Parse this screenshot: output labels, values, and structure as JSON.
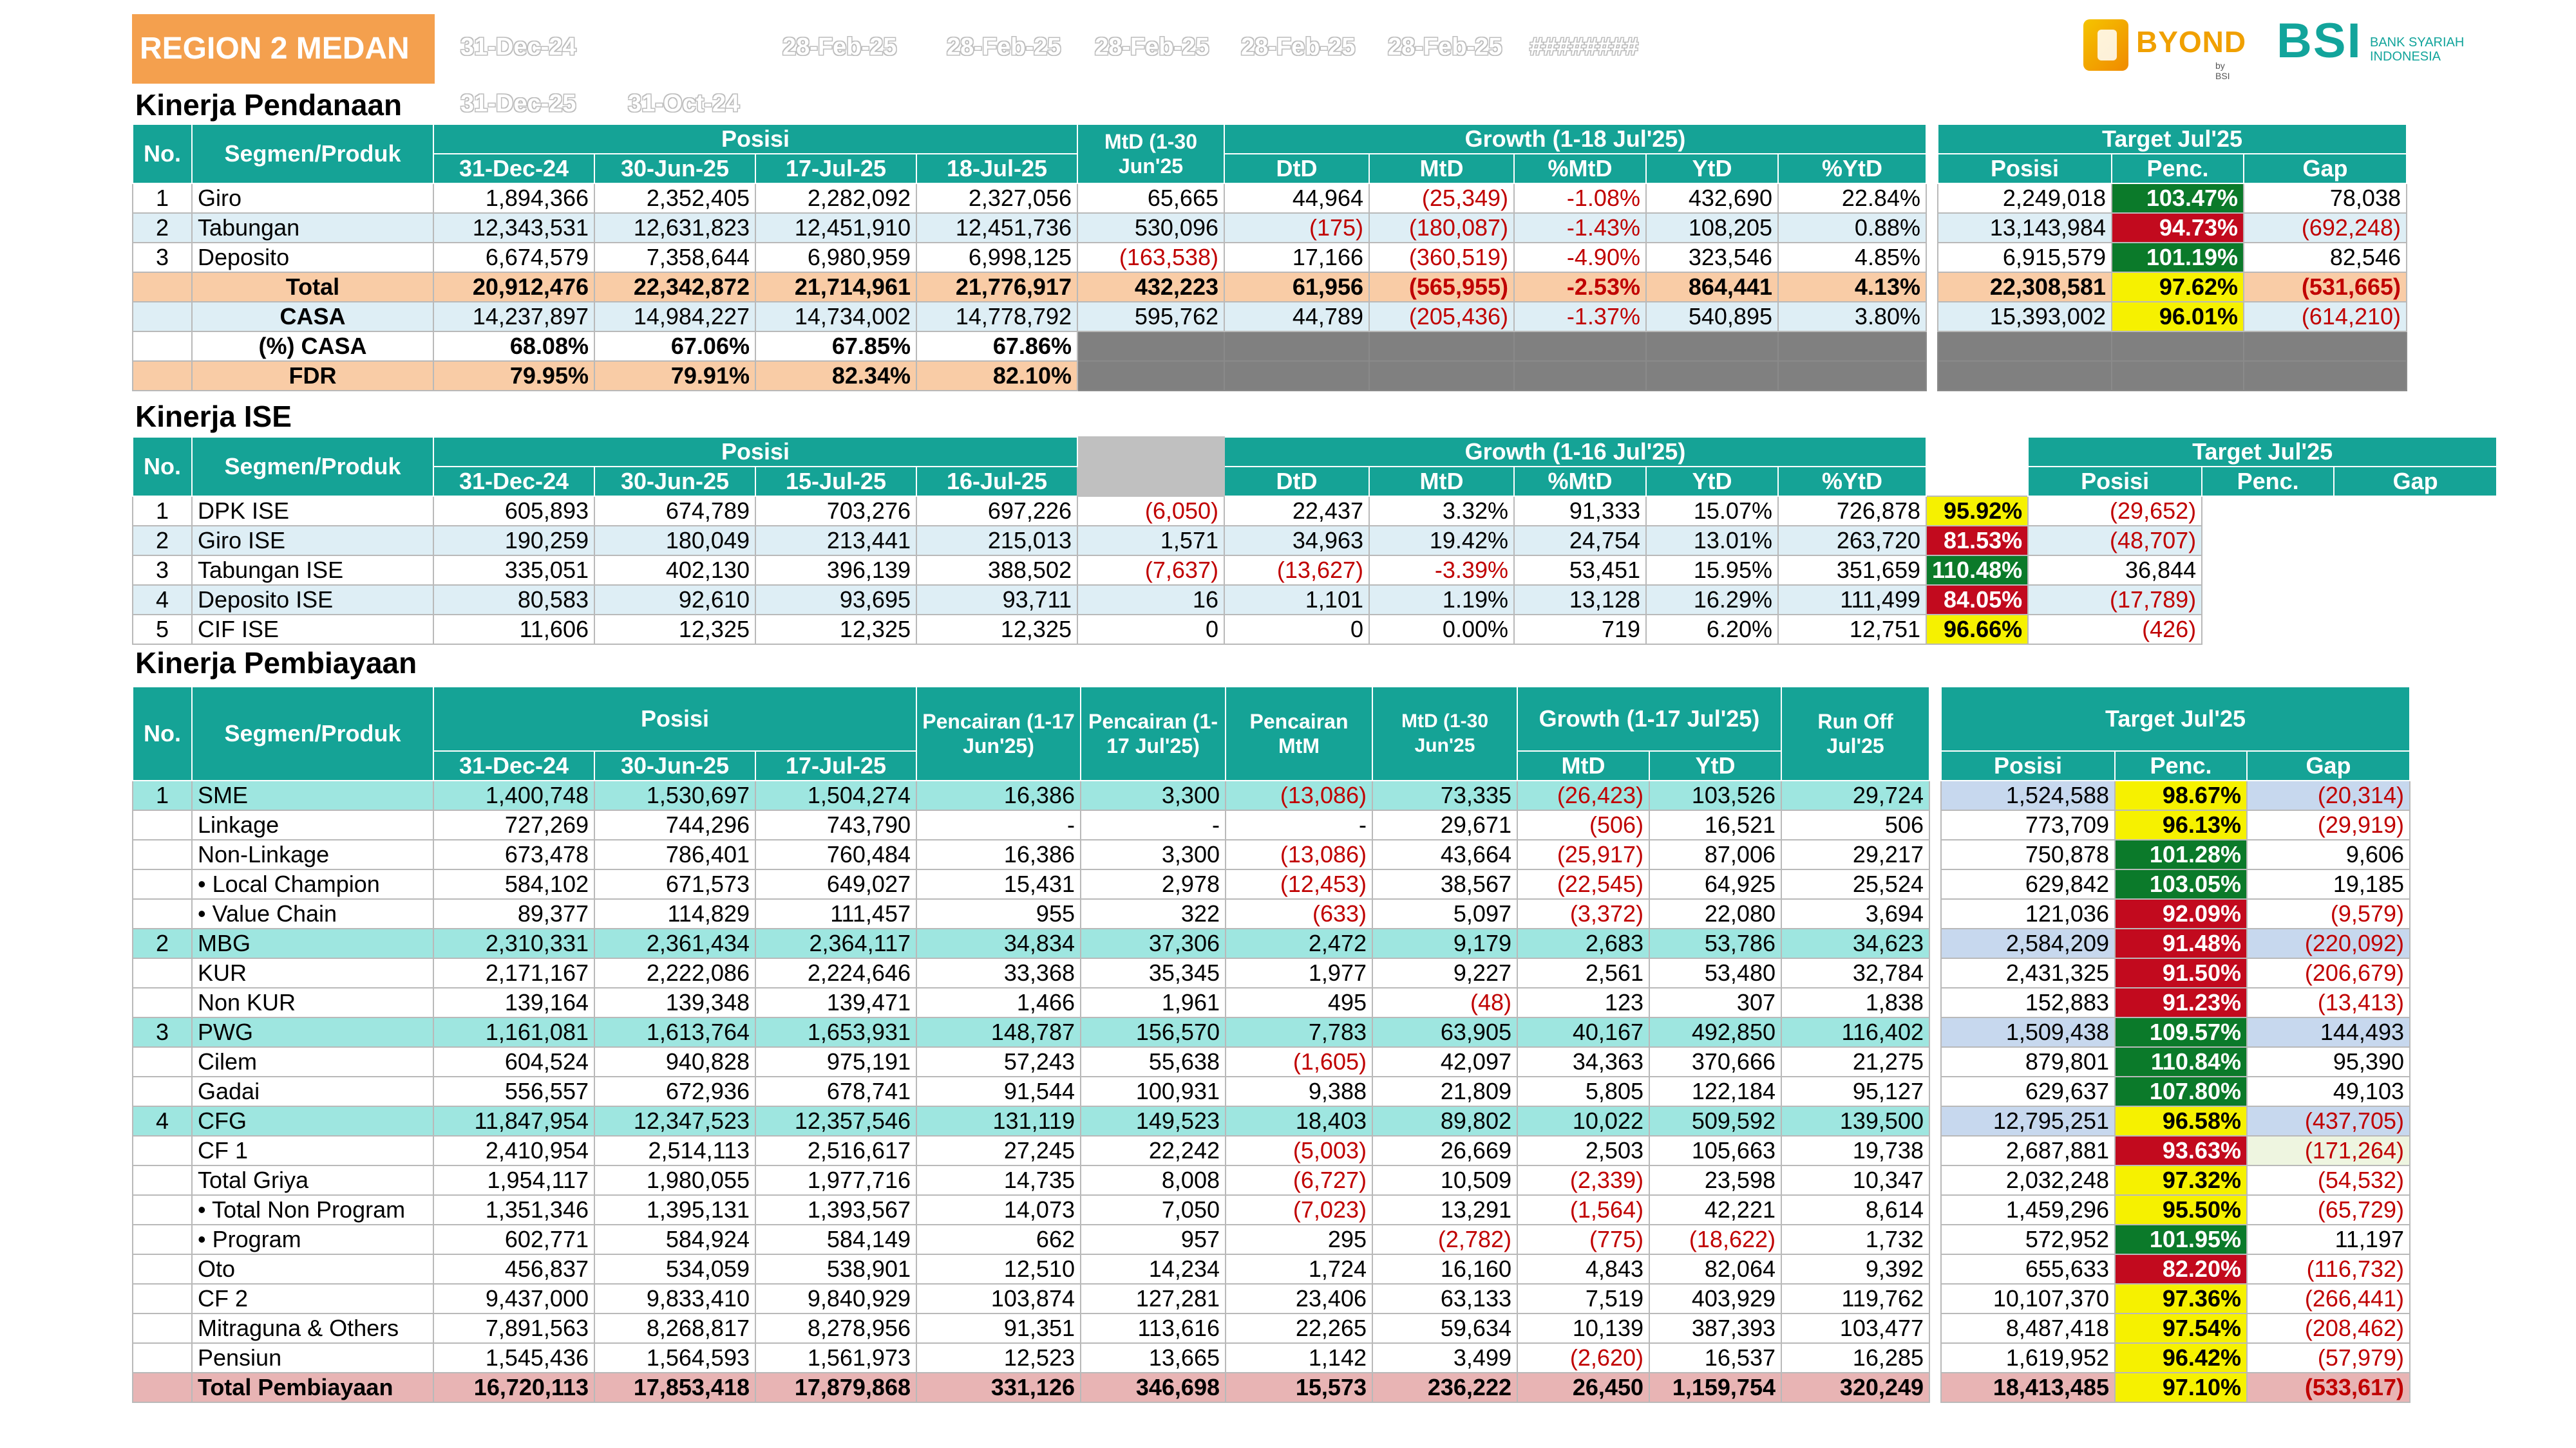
{
  "header": {
    "region": "REGION 2 MEDAN",
    "ghost_row1": [
      "31-Dec-24",
      "28-Feb-25",
      "28-Feb-25",
      "28-Feb-25",
      "28-Feb-25",
      "28-Feb-25",
      "########"
    ],
    "ghost_row2": [
      "31-Dec-25",
      "31-Oct-24"
    ],
    "logo_byond": "BYOND",
    "logo_byond_sub": "by BSI",
    "logo_bsi": "BSI",
    "logo_bsi_sub1": "BANK SYARIAH",
    "logo_bsi_sub2": "INDONESIA"
  },
  "colors": {
    "header_teal": "#15a396",
    "region_orange": "#f4a04e",
    "penc_green": "#0b7a2a",
    "penc_red": "#c20a1e",
    "penc_yellow": "#f6f100",
    "neg_text": "#c00000"
  },
  "pendanaan": {
    "title": "Kinerja Pendanaan",
    "h": {
      "no": "No.",
      "segmen": "Segmen/Produk",
      "posisi": "Posisi",
      "mtd": "MtD (1-30 Jun'25",
      "growth": "Growth (1-18 Jul'25)",
      "target": "Target Jul'25",
      "d1": "31-Dec-24",
      "d2": "30-Jun-25",
      "d3": "17-Jul-25",
      "d4": "18-Jul-25",
      "g1": "DtD",
      "g2": "MtD",
      "g3": "%MtD",
      "g4": "YtD",
      "g5": "%YtD",
      "t1": "Posisi",
      "t2": "Penc.",
      "t3": "Gap"
    },
    "rows": [
      {
        "no": "1",
        "name": "Giro",
        "v": [
          "1,894,366",
          "2,352,405",
          "2,282,092",
          "2,327,056",
          "65,665",
          "44,964",
          "(25,349)",
          "-1.08%",
          "432,690",
          "22.84%",
          "2,249,018",
          "103.47%",
          "78,038"
        ]
      },
      {
        "no": "2",
        "name": "Tabungan",
        "v": [
          "12,343,531",
          "12,631,823",
          "12,451,910",
          "12,451,736",
          "530,096",
          "(175)",
          "(180,087)",
          "-1.43%",
          "108,205",
          "0.88%",
          "13,143,984",
          "94.73%",
          "(692,248)"
        ]
      },
      {
        "no": "3",
        "name": "Deposito",
        "v": [
          "6,674,579",
          "7,358,644",
          "6,980,959",
          "6,998,125",
          "(163,538)",
          "17,166",
          "(360,519)",
          "-4.90%",
          "323,546",
          "4.85%",
          "6,915,579",
          "101.19%",
          "82,546"
        ]
      },
      {
        "no": "",
        "name": "Total",
        "v": [
          "20,912,476",
          "22,342,872",
          "21,714,961",
          "21,776,917",
          "432,223",
          "61,956",
          "(565,955)",
          "-2.53%",
          "864,441",
          "4.13%",
          "22,308,581",
          "97.62%",
          "(531,665)"
        ]
      },
      {
        "no": "",
        "name": "CASA",
        "v": [
          "14,237,897",
          "14,984,227",
          "14,734,002",
          "14,778,792",
          "595,762",
          "44,789",
          "(205,436)",
          "-1.37%",
          "540,895",
          "3.80%",
          "15,393,002",
          "96.01%",
          "(614,210)"
        ]
      },
      {
        "no": "",
        "name": "(%) CASA",
        "v": [
          "68.08%",
          "67.06%",
          "67.85%",
          "67.86%"
        ]
      },
      {
        "no": "",
        "name": "FDR",
        "v": [
          "79.95%",
          "79.91%",
          "82.34%",
          "82.10%"
        ]
      }
    ]
  },
  "ise": {
    "title": "Kinerja ISE",
    "h": {
      "no": "No.",
      "segmen": "Segmen/Produk",
      "posisi": "Posisi",
      "growth": "Growth (1-16 Jul'25)",
      "target": "Target Jul'25",
      "d1": "31-Dec-24",
      "d2": "30-Jun-25",
      "d3": "15-Jul-25",
      "d4": "16-Jul-25",
      "g1": "DtD",
      "g2": "MtD",
      "g3": "%MtD",
      "g4": "YtD",
      "g5": "%YtD",
      "t1": "Posisi",
      "t2": "Penc.",
      "t3": "Gap"
    },
    "rows": [
      {
        "no": "1",
        "name": "DPK ISE",
        "v": [
          "605,893",
          "674,789",
          "703,276",
          "697,226",
          "(6,050)",
          "22,437",
          "3.32%",
          "91,333",
          "15.07%",
          "726,878",
          "95.92%",
          "(29,652)"
        ]
      },
      {
        "no": "2",
        "name": "Giro ISE",
        "v": [
          "190,259",
          "180,049",
          "213,441",
          "215,013",
          "1,571",
          "34,963",
          "19.42%",
          "24,754",
          "13.01%",
          "263,720",
          "81.53%",
          "(48,707)"
        ]
      },
      {
        "no": "3",
        "name": "Tabungan ISE",
        "v": [
          "335,051",
          "402,130",
          "396,139",
          "388,502",
          "(7,637)",
          "(13,627)",
          "-3.39%",
          "53,451",
          "15.95%",
          "351,659",
          "110.48%",
          "36,844"
        ]
      },
      {
        "no": "4",
        "name": "Deposito ISE",
        "v": [
          "80,583",
          "92,610",
          "93,695",
          "93,711",
          "16",
          "1,101",
          "1.19%",
          "13,128",
          "16.29%",
          "111,499",
          "84.05%",
          "(17,789)"
        ]
      },
      {
        "no": "5",
        "name": "CIF ISE",
        "v": [
          "11,606",
          "12,325",
          "12,325",
          "12,325",
          "0",
          "0",
          "0.00%",
          "719",
          "6.20%",
          "12,751",
          "96.66%",
          "(426)"
        ]
      }
    ]
  },
  "pembiayaan": {
    "title": "Kinerja Pembiayaan",
    "h": {
      "no": "No.",
      "segmen": "Segmen/Produk",
      "posisi": "Posisi",
      "pc1": "Pencairan (1-17 Jun'25)",
      "pc2": "Pencairan (1-17 Jul'25)",
      "pc3": "Pencairan MtM",
      "mtd": "MtD (1-30 Jun'25",
      "growth": "Growth (1-17 Jul'25)",
      "runoff": "Run Off Jul'25",
      "target": "Target Jul'25",
      "d1": "31-Dec-24",
      "d2": "30-Jun-25",
      "d3": "17-Jul-25",
      "g1": "MtD",
      "g2": "YtD",
      "t1": "Posisi",
      "t2": "Penc.",
      "t3": "Gap"
    },
    "rows": [
      {
        "no": "1",
        "name": "SME",
        "v": [
          "1,400,748",
          "1,530,697",
          "1,504,274",
          "16,386",
          "3,300",
          "(13,086)",
          "73,335",
          "(26,423)",
          "103,526",
          "29,724",
          "1,524,588",
          "98.67%",
          "(20,314)"
        ]
      },
      {
        "no": "",
        "name": "Linkage",
        "v": [
          "727,269",
          "744,296",
          "743,790",
          "-",
          "-",
          "-",
          "29,671",
          "(506)",
          "16,521",
          "506",
          "773,709",
          "96.13%",
          "(29,919)"
        ]
      },
      {
        "no": "",
        "name": "Non-Linkage",
        "v": [
          "673,478",
          "786,401",
          "760,484",
          "16,386",
          "3,300",
          "(13,086)",
          "43,664",
          "(25,917)",
          "87,006",
          "29,217",
          "750,878",
          "101.28%",
          "9,606"
        ]
      },
      {
        "no": "",
        "name": "• Local Champion",
        "v": [
          "584,102",
          "671,573",
          "649,027",
          "15,431",
          "2,978",
          "(12,453)",
          "38,567",
          "(22,545)",
          "64,925",
          "25,524",
          "629,842",
          "103.05%",
          "19,185"
        ]
      },
      {
        "no": "",
        "name": "• Value Chain",
        "v": [
          "89,377",
          "114,829",
          "111,457",
          "955",
          "322",
          "(633)",
          "5,097",
          "(3,372)",
          "22,080",
          "3,694",
          "121,036",
          "92.09%",
          "(9,579)"
        ]
      },
      {
        "no": "2",
        "name": "MBG",
        "v": [
          "2,310,331",
          "2,361,434",
          "2,364,117",
          "34,834",
          "37,306",
          "2,472",
          "9,179",
          "2,683",
          "53,786",
          "34,623",
          "2,584,209",
          "91.48%",
          "(220,092)"
        ]
      },
      {
        "no": "",
        "name": "KUR",
        "v": [
          "2,171,167",
          "2,222,086",
          "2,224,646",
          "33,368",
          "35,345",
          "1,977",
          "9,227",
          "2,561",
          "53,480",
          "32,784",
          "2,431,325",
          "91.50%",
          "(206,679)"
        ]
      },
      {
        "no": "",
        "name": "Non KUR",
        "v": [
          "139,164",
          "139,348",
          "139,471",
          "1,466",
          "1,961",
          "495",
          "(48)",
          "123",
          "307",
          "1,838",
          "152,883",
          "91.23%",
          "(13,413)"
        ]
      },
      {
        "no": "3",
        "name": "PWG",
        "v": [
          "1,161,081",
          "1,613,764",
          "1,653,931",
          "148,787",
          "156,570",
          "7,783",
          "63,905",
          "40,167",
          "492,850",
          "116,402",
          "1,509,438",
          "109.57%",
          "144,493"
        ]
      },
      {
        "no": "",
        "name": "Cilem",
        "v": [
          "604,524",
          "940,828",
          "975,191",
          "57,243",
          "55,638",
          "(1,605)",
          "42,097",
          "34,363",
          "370,666",
          "21,275",
          "879,801",
          "110.84%",
          "95,390"
        ]
      },
      {
        "no": "",
        "name": "Gadai",
        "v": [
          "556,557",
          "672,936",
          "678,741",
          "91,544",
          "100,931",
          "9,388",
          "21,809",
          "5,805",
          "122,184",
          "95,127",
          "629,637",
          "107.80%",
          "49,103"
        ]
      },
      {
        "no": "4",
        "name": "CFG",
        "v": [
          "11,847,954",
          "12,347,523",
          "12,357,546",
          "131,119",
          "149,523",
          "18,403",
          "89,802",
          "10,022",
          "509,592",
          "139,500",
          "12,795,251",
          "96.58%",
          "(437,705)"
        ]
      },
      {
        "no": "",
        "name": "CF 1",
        "v": [
          "2,410,954",
          "2,514,113",
          "2,516,617",
          "27,245",
          "22,242",
          "(5,003)",
          "26,669",
          "2,503",
          "105,663",
          "19,738",
          "2,687,881",
          "93.63%",
          "(171,264)"
        ]
      },
      {
        "no": "",
        "name": "Total Griya",
        "v": [
          "1,954,117",
          "1,980,055",
          "1,977,716",
          "14,735",
          "8,008",
          "(6,727)",
          "10,509",
          "(2,339)",
          "23,598",
          "10,347",
          "2,032,248",
          "97.32%",
          "(54,532)"
        ]
      },
      {
        "no": "",
        "name": "• Total Non Program",
        "v": [
          "1,351,346",
          "1,395,131",
          "1,393,567",
          "14,073",
          "7,050",
          "(7,023)",
          "13,291",
          "(1,564)",
          "42,221",
          "8,614",
          "1,459,296",
          "95.50%",
          "(65,729)"
        ]
      },
      {
        "no": "",
        "name": "• Program",
        "v": [
          "602,771",
          "584,924",
          "584,149",
          "662",
          "957",
          "295",
          "(2,782)",
          "(775)",
          "(18,622)",
          "1,732",
          "572,952",
          "101.95%",
          "11,197"
        ]
      },
      {
        "no": "",
        "name": "Oto",
        "v": [
          "456,837",
          "534,059",
          "538,901",
          "12,510",
          "14,234",
          "1,724",
          "16,160",
          "4,843",
          "82,064",
          "9,392",
          "655,633",
          "82.20%",
          "(116,732)"
        ]
      },
      {
        "no": "",
        "name": "CF 2",
        "v": [
          "9,437,000",
          "9,833,410",
          "9,840,929",
          "103,874",
          "127,281",
          "23,406",
          "63,133",
          "7,519",
          "403,929",
          "119,762",
          "10,107,370",
          "97.36%",
          "(266,441)"
        ]
      },
      {
        "no": "",
        "name": "Mitraguna & Others",
        "v": [
          "7,891,563",
          "8,268,817",
          "8,278,956",
          "91,351",
          "113,616",
          "22,265",
          "59,634",
          "10,139",
          "387,393",
          "103,477",
          "8,487,418",
          "97.54%",
          "(208,462)"
        ]
      },
      {
        "no": "",
        "name": "Pensiun",
        "v": [
          "1,545,436",
          "1,564,593",
          "1,561,973",
          "12,523",
          "13,665",
          "1,142",
          "3,499",
          "(2,620)",
          "16,537",
          "16,285",
          "1,619,952",
          "96.42%",
          "(57,979)"
        ]
      },
      {
        "no": "",
        "name": "Total Pembiayaan",
        "v": [
          "16,720,113",
          "17,853,418",
          "17,879,868",
          "331,126",
          "346,698",
          "15,573",
          "236,222",
          "26,450",
          "1,159,754",
          "320,249",
          "18,413,485",
          "97.10%",
          "(533,617)"
        ]
      }
    ]
  }
}
